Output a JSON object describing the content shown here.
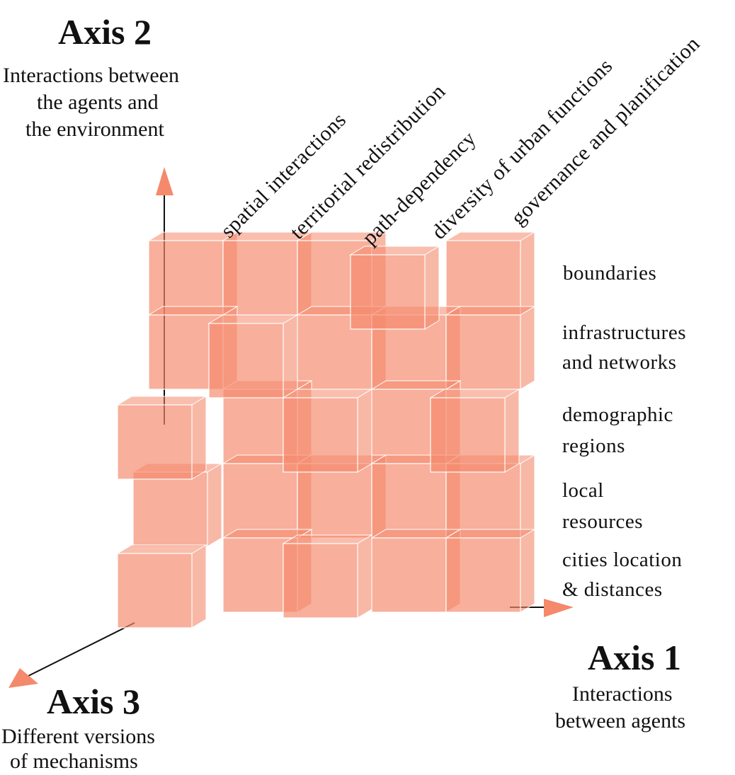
{
  "axis2": {
    "title": "Axis 2",
    "desc": [
      "Interactions between",
      "the agents and",
      "the environment"
    ]
  },
  "axis1": {
    "title": "Axis 1",
    "desc": [
      "Interactions",
      "between agents"
    ]
  },
  "axis3": {
    "title": "Axis 3",
    "desc": [
      "Different versions",
      "of mechanisms"
    ]
  },
  "columns": [
    "spatial interactions",
    "territorial redistribution",
    "path-dependency",
    "diversity of urban functions",
    "governance and planification"
  ],
  "rows": [
    [
      "boundaries"
    ],
    [
      "infrastructures",
      "and networks"
    ],
    [
      "demographic",
      "regions"
    ],
    [
      "local",
      "resources"
    ],
    [
      "cities location",
      "& distances"
    ]
  ],
  "colors": {
    "cube_fill": "#f4896b",
    "arrow": "#f4896b",
    "axis_line": "#111111"
  }
}
